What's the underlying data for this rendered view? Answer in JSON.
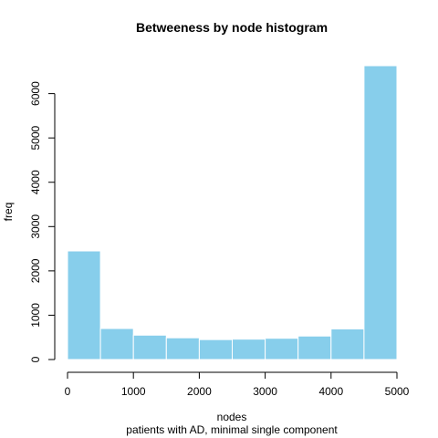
{
  "chart_data": {
    "type": "bar",
    "title": "Betweeness by node histogram",
    "xlabel": "nodes",
    "ylabel": "freq",
    "subtitle": "patients with AD, minimal single component",
    "bins": [
      {
        "from": 0,
        "to": 500,
        "count": 2450
      },
      {
        "from": 500,
        "to": 1000,
        "count": 700
      },
      {
        "from": 1000,
        "to": 1500,
        "count": 550
      },
      {
        "from": 1500,
        "to": 2000,
        "count": 490
      },
      {
        "from": 2000,
        "to": 2500,
        "count": 450
      },
      {
        "from": 2500,
        "to": 3000,
        "count": 460
      },
      {
        "from": 3000,
        "to": 3500,
        "count": 480
      },
      {
        "from": 3500,
        "to": 4000,
        "count": 530
      },
      {
        "from": 4000,
        "to": 4500,
        "count": 690
      },
      {
        "from": 4500,
        "to": 5000,
        "count": 6630
      }
    ],
    "xlim": [
      0,
      5000
    ],
    "ylim": [
      0,
      6630
    ],
    "xticks": [
      0,
      1000,
      2000,
      3000,
      4000,
      5000
    ],
    "yticks": [
      0,
      1000,
      2000,
      3000,
      4000,
      5000,
      6000
    ],
    "bar_color": "#87CEEB",
    "bar_border_color": "#FFFFFF",
    "grid": false,
    "legend": "none"
  }
}
